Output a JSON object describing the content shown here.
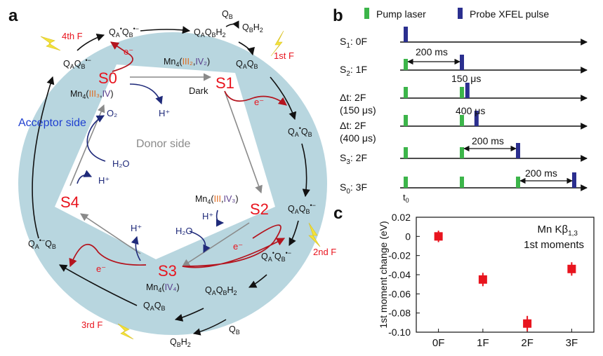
{
  "panels": {
    "a": "a",
    "b": "b",
    "c": "c"
  },
  "cycle": {
    "donor_label": "Donor side",
    "acceptor_label": "Acceptor side",
    "states": [
      "S0",
      "S1",
      "S2",
      "S3",
      "S4"
    ],
    "dark_label": "Dark",
    "flash_labels": [
      "1st F",
      "2nd F",
      "3rd F",
      "4th F"
    ],
    "electron": "e⁻",
    "proton": "H⁺",
    "water": "H₂O",
    "oxygen": "O₂",
    "mn_s0_prefix": "Mn₄(",
    "mn_s0_a": "III₃",
    "mn_s0_b": "IV",
    "mn_s1_a": "III₂",
    "mn_s1_b": "IV₂",
    "mn_s2_a": "III",
    "mn_s2_b": "IV₃",
    "mn_s3_b": "IV₄",
    "quinone": {
      "qb": "Q",
      "qbh2": "Q",
      "qaqb": "Q",
      "note": "quinone species drawn with sub/superscripts"
    }
  },
  "timing": {
    "legend_pump": "Pump laser",
    "legend_probe": "Probe XFEL pulse",
    "rows": [
      {
        "label_main": "S",
        "label_sub": "1",
        "label_rest": ": 0F",
        "pump": [],
        "probe": [
          0
        ]
      },
      {
        "label_main": "S",
        "label_sub": "2",
        "label_rest": ": 1F",
        "pump": [
          0
        ],
        "probe": [
          200
        ]
      },
      {
        "label_main": "Δt",
        "label_sub": "",
        "label_rest": ": 2F",
        "label_line2": "(150 μs)",
        "pump": [
          0,
          200
        ],
        "probe": [
          200.15
        ]
      },
      {
        "label_main": "Δt",
        "label_sub": "",
        "label_rest": ": 2F",
        "label_line2": "(400 μs)",
        "pump": [
          0,
          200
        ],
        "probe": [
          200.4
        ]
      },
      {
        "label_main": "S",
        "label_sub": "3",
        "label_rest": ": 2F",
        "pump": [
          0,
          200
        ],
        "probe": [
          400
        ]
      },
      {
        "label_main": "S",
        "label_sub": "0",
        "label_rest": ": 3F",
        "pump": [
          0,
          200,
          400
        ],
        "probe": [
          600
        ]
      }
    ],
    "annot_200ms": "200 ms",
    "annot_150us": "150 μs",
    "annot_400us": "400 μs",
    "t0_main": "t",
    "t0_sub": "0",
    "colors": {
      "pump": "#3cb54a",
      "probe": "#2b2f8f"
    }
  },
  "chart_data": {
    "type": "scatter",
    "categories": [
      "0F",
      "1F",
      "2F",
      "3F"
    ],
    "values": [
      0.0,
      -0.045,
      -0.091,
      -0.034
    ],
    "errors": [
      0.006,
      0.007,
      0.008,
      0.007
    ],
    "ylabel": "1st moment change (eV)",
    "yticks": [
      "0.02",
      "0",
      "-0.02",
      "-0.04",
      "-0.06",
      "-0.08",
      "-0.10"
    ],
    "ylim": [
      -0.1,
      0.02
    ],
    "legend_line1": "Mn Kβ",
    "legend_line1_sub": "1,3",
    "legend_line2": "1st moments",
    "marker_color": "#e8141e"
  }
}
